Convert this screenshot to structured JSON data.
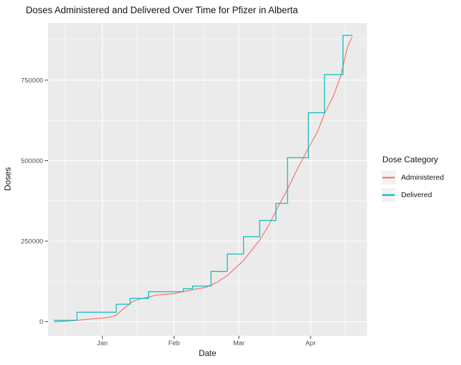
{
  "chart_data": {
    "type": "line",
    "title": "Doses Administered and Delivered Over Time for Pfizer in Alberta",
    "xlabel": "Date",
    "ylabel": "Doses",
    "grid": true,
    "legend_position": "right",
    "colors": {
      "administered": "#F8766D",
      "delivered": "#00BFC4",
      "panel_bg": "#EBEBEB",
      "grid": "#FFFFFF",
      "tick_label": "#4D4D4D",
      "tick_mark": "#333333",
      "legend_key_bg": "#F2F2F2"
    },
    "x_axis": {
      "range": [
        "2020-12-08",
        "2021-04-24"
      ],
      "major_ticks": [
        {
          "label": "Jan",
          "date": "2021-01-01"
        },
        {
          "label": "Feb",
          "date": "2021-02-01"
        },
        {
          "label": "Mar",
          "date": "2021-03-01"
        },
        {
          "label": "Apr",
          "date": "2021-04-01"
        }
      ],
      "minor_dates": [
        "2020-12-16",
        "2021-01-16",
        "2021-02-14",
        "2021-03-16",
        "2021-04-16"
      ]
    },
    "y_axis": {
      "range": [
        -44450,
        933450
      ],
      "major_ticks": [
        {
          "label": "0",
          "value": 0
        },
        {
          "label": "250000",
          "value": 250000
        },
        {
          "label": "500000",
          "value": 500000
        },
        {
          "label": "750000",
          "value": 750000
        }
      ],
      "minor_values": [
        125000,
        375000,
        625000,
        875000
      ]
    },
    "legend": {
      "title": "Dose Category",
      "entries": [
        {
          "label": "Administered",
          "color": "#F8766D"
        },
        {
          "label": "Delivered",
          "color": "#00BFC4"
        }
      ]
    },
    "series": [
      {
        "name": "Administered",
        "line": "smooth",
        "color": "#F8766D",
        "points": [
          [
            "2020-12-11",
            0
          ],
          [
            "2020-12-16",
            1000
          ],
          [
            "2020-12-21",
            4000
          ],
          [
            "2020-12-26",
            7500
          ],
          [
            "2021-01-01",
            10500
          ],
          [
            "2021-01-05",
            15000
          ],
          [
            "2021-01-07",
            20000
          ],
          [
            "2021-01-09",
            33000
          ],
          [
            "2021-01-11",
            45000
          ],
          [
            "2021-01-14",
            62000
          ],
          [
            "2021-01-17",
            70000
          ],
          [
            "2021-01-21",
            76000
          ],
          [
            "2021-01-24",
            82000
          ],
          [
            "2021-02-01",
            87000
          ],
          [
            "2021-02-09",
            99000
          ],
          [
            "2021-02-15",
            107000
          ],
          [
            "2021-02-20",
            124000
          ],
          [
            "2021-02-24",
            143000
          ],
          [
            "2021-03-03",
            190000
          ],
          [
            "2021-03-10",
            253000
          ],
          [
            "2021-03-14",
            300000
          ],
          [
            "2021-03-17",
            344000
          ],
          [
            "2021-03-22",
            411000
          ],
          [
            "2021-03-26",
            470000
          ],
          [
            "2021-03-31",
            538000
          ],
          [
            "2021-04-04",
            590000
          ],
          [
            "2021-04-07",
            645000
          ],
          [
            "2021-04-11",
            703000
          ],
          [
            "2021-04-14",
            762000
          ],
          [
            "2021-04-17",
            855000
          ],
          [
            "2021-04-19",
            884000
          ]
        ]
      },
      {
        "name": "Delivered",
        "line": "step",
        "color": "#00BFC4",
        "end_date": "2021-04-19",
        "points": [
          [
            "2020-12-11",
            3900
          ],
          [
            "2020-12-21",
            29250
          ],
          [
            "2021-01-07",
            54000
          ],
          [
            "2021-01-13",
            72000
          ],
          [
            "2021-01-21",
            93000
          ],
          [
            "2021-02-05",
            102000
          ],
          [
            "2021-02-09",
            110500
          ],
          [
            "2021-02-17",
            156000
          ],
          [
            "2021-02-24",
            210000
          ],
          [
            "2021-03-03",
            264000
          ],
          [
            "2021-03-10",
            314000
          ],
          [
            "2021-03-17",
            367000
          ],
          [
            "2021-03-22",
            509000
          ],
          [
            "2021-03-31",
            649000
          ],
          [
            "2021-04-07",
            767000
          ],
          [
            "2021-04-15",
            888900
          ]
        ]
      }
    ]
  }
}
